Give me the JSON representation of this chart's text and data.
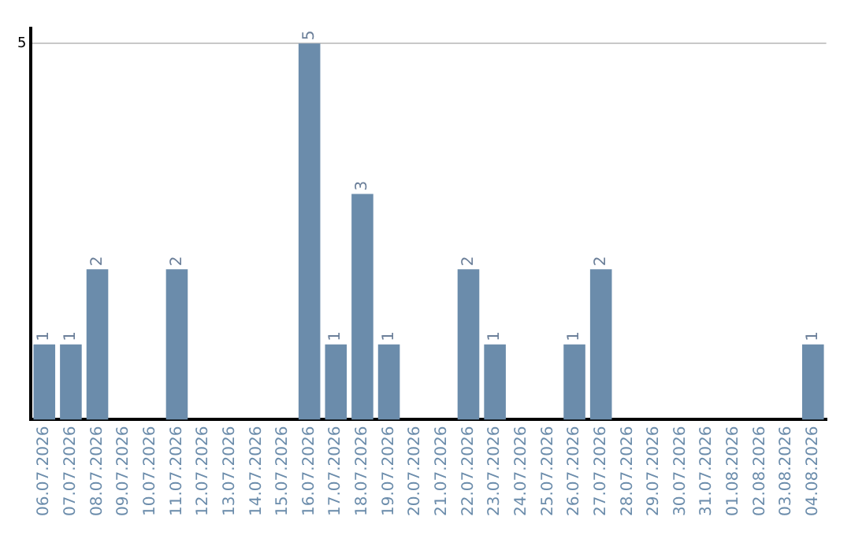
{
  "chart_data": {
    "type": "bar",
    "categories": [
      "06.07.2026",
      "07.07.2026",
      "08.07.2026",
      "09.07.2026",
      "10.07.2026",
      "11.07.2026",
      "12.07.2026",
      "13.07.2026",
      "14.07.2026",
      "15.07.2026",
      "16.07.2026",
      "17.07.2026",
      "18.07.2026",
      "19.07.2026",
      "20.07.2026",
      "21.07.2026",
      "22.07.2026",
      "23.07.2026",
      "24.07.2026",
      "25.07.2026",
      "26.07.2026",
      "27.07.2026",
      "28.07.2026",
      "29.07.2026",
      "30.07.2026",
      "31.07.2026",
      "01.08.2026",
      "02.08.2026",
      "03.08.2026",
      "04.08.2026"
    ],
    "values": [
      1,
      1,
      2,
      0,
      0,
      2,
      0,
      0,
      0,
      0,
      5,
      1,
      3,
      1,
      0,
      0,
      2,
      1,
      0,
      0,
      1,
      2,
      0,
      0,
      0,
      0,
      0,
      0,
      0,
      1
    ],
    "value_labels": [
      "1",
      "1",
      "2",
      null,
      null,
      "2",
      null,
      null,
      null,
      null,
      "5",
      "1",
      "3",
      "1",
      null,
      null,
      "2",
      "1",
      null,
      null,
      "1",
      "2",
      null,
      null,
      null,
      null,
      null,
      null,
      null,
      "1"
    ],
    "color": "#6b8cab",
    "ylim": [
      0,
      5.2
    ],
    "yticks": [
      5
    ],
    "grid": "y",
    "legend": false
  }
}
